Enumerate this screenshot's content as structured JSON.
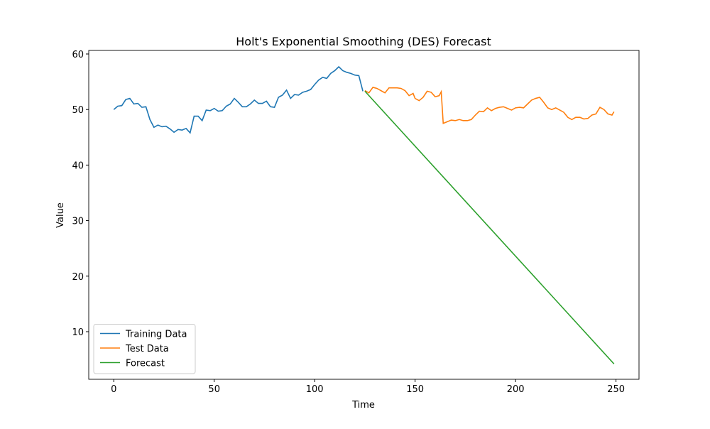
{
  "chart_data": {
    "type": "line",
    "title": "Holt's Exponential Smoothing (DES) Forecast",
    "xlabel": "Time",
    "ylabel": "Value",
    "xlim": [
      -12.45,
      261.45
    ],
    "ylim": [
      1.43,
      60.64
    ],
    "xticks": [
      0,
      50,
      100,
      150,
      200,
      250
    ],
    "yticks": [
      10,
      20,
      30,
      40,
      50,
      60
    ],
    "legend": "lower left",
    "series": [
      {
        "name": "Training Data",
        "color": "#1f77b4",
        "x": [
          0,
          2,
          4,
          6,
          8,
          10,
          12,
          14,
          16,
          18,
          20,
          22,
          24,
          26,
          28,
          30,
          32,
          34,
          36,
          38,
          40,
          42,
          44,
          46,
          48,
          50,
          52,
          54,
          56,
          58,
          60,
          62,
          64,
          66,
          68,
          70,
          72,
          74,
          76,
          78,
          80,
          82,
          84,
          86,
          88,
          90,
          92,
          94,
          96,
          98,
          100,
          102,
          104,
          106,
          108,
          110,
          112,
          114,
          116,
          118,
          120,
          122,
          124
        ],
        "values": [
          50,
          50.6,
          50.7,
          51.8,
          52.0,
          51.0,
          51.1,
          50.4,
          50.5,
          48.2,
          46.8,
          47.2,
          46.9,
          47.0,
          46.5,
          45.9,
          46.4,
          46.3,
          46.6,
          45.8,
          48.8,
          48.8,
          48.0,
          49.9,
          49.8,
          50.2,
          49.7,
          49.8,
          50.6,
          51.0,
          52.0,
          51.3,
          50.5,
          50.5,
          51.0,
          51.7,
          51.1,
          51.1,
          51.5,
          50.5,
          50.4,
          52.2,
          52.6,
          53.5,
          52.0,
          52.7,
          52.6,
          53.1,
          53.3,
          53.6,
          54.5,
          55.3,
          55.8,
          55.6,
          56.5,
          57.0,
          57.7,
          57.0,
          56.7,
          56.5,
          56.2,
          56.1,
          53.3
        ]
      },
      {
        "name": "Test Data",
        "color": "#ff7f0e",
        "x": [
          125,
          127,
          129,
          131,
          133,
          135,
          137,
          139,
          141,
          143,
          145,
          147,
          149,
          150,
          152,
          154,
          156,
          158,
          160,
          162,
          163,
          164,
          166,
          168,
          170,
          172,
          174,
          176,
          178,
          180,
          182,
          184,
          186,
          188,
          190,
          192,
          194,
          196,
          198,
          200,
          202,
          204,
          206,
          208,
          210,
          212,
          214,
          216,
          218,
          220,
          222,
          224,
          226,
          228,
          230,
          232,
          234,
          236,
          238,
          240,
          242,
          244,
          246,
          248,
          249
        ],
        "values": [
          53.4,
          53.0,
          54.0,
          53.8,
          53.4,
          53.0,
          53.9,
          53.9,
          53.9,
          53.8,
          53.4,
          52.5,
          52.9,
          52.0,
          51.6,
          52.2,
          53.3,
          53.1,
          52.3,
          52.5,
          53.2,
          47.5,
          47.8,
          48.1,
          48.0,
          48.2,
          48.0,
          48.0,
          48.2,
          49.0,
          49.7,
          49.6,
          50.3,
          49.8,
          50.2,
          50.4,
          50.5,
          50.2,
          49.9,
          50.3,
          50.4,
          50.3,
          51.0,
          51.7,
          52.0,
          52.2,
          51.3,
          50.3,
          50.0,
          50.3,
          49.9,
          49.5,
          48.6,
          48.2,
          48.6,
          48.6,
          48.3,
          48.4,
          49.0,
          49.2,
          50.4,
          50.0,
          49.2,
          49.0,
          49.6
        ]
      },
      {
        "name": "Forecast",
        "color": "#2ca02c",
        "x": [
          125,
          249
        ],
        "values": [
          53.3,
          4.2
        ]
      }
    ]
  }
}
